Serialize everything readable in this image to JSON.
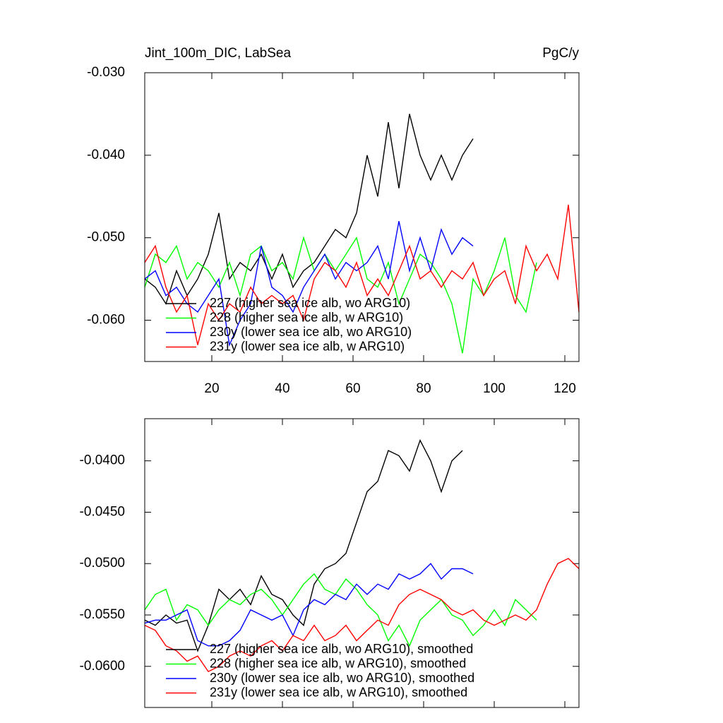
{
  "chart_data": [
    {
      "type": "line",
      "title": "Jint_100m_DIC, LabSea",
      "units": "PgC/y",
      "x": [
        1,
        4,
        7,
        10,
        13,
        16,
        19,
        22,
        25,
        28,
        31,
        34,
        37,
        40,
        43,
        46,
        49,
        52,
        55,
        58,
        61,
        64,
        67,
        70,
        73,
        76,
        79,
        82,
        85,
        88,
        91,
        94,
        97,
        100,
        103,
        106,
        109,
        112,
        115,
        118,
        121,
        124
      ],
      "series": [
        {
          "name": "227 (higher sea ice alb, wo ARG10)",
          "color": "#000000",
          "values": [
            -0.055,
            -0.056,
            -0.058,
            -0.054,
            -0.057,
            -0.055,
            -0.052,
            -0.047,
            -0.055,
            -0.053,
            -0.054,
            -0.052,
            -0.055,
            -0.052,
            -0.056,
            -0.054,
            -0.053,
            -0.051,
            -0.049,
            -0.05,
            -0.047,
            -0.04,
            -0.045,
            -0.036,
            -0.044,
            -0.035,
            -0.04,
            -0.043,
            -0.04,
            -0.043,
            -0.04,
            -0.038,
            null,
            null,
            null,
            null,
            null,
            null,
            null,
            null,
            null,
            null
          ]
        },
        {
          "name": "228 (higher sea ice alb, w ARG10)",
          "color": "#00ff00",
          "values": [
            -0.056,
            -0.052,
            -0.053,
            -0.051,
            -0.055,
            -0.053,
            -0.054,
            -0.056,
            -0.053,
            -0.057,
            -0.052,
            -0.051,
            -0.054,
            -0.053,
            -0.055,
            -0.05,
            -0.054,
            -0.052,
            -0.054,
            -0.052,
            -0.05,
            -0.055,
            -0.056,
            -0.053,
            -0.058,
            -0.055,
            -0.052,
            -0.053,
            -0.055,
            -0.058,
            -0.064,
            -0.055,
            -0.057,
            -0.054,
            -0.05,
            -0.057,
            -0.059,
            -0.053,
            null,
            null,
            null,
            null
          ]
        },
        {
          "name": "230y (lower sea ice alb, wo ARG10)",
          "color": "#0000ff",
          "values": [
            -0.055,
            -0.054,
            -0.057,
            -0.056,
            -0.058,
            -0.059,
            -0.057,
            -0.055,
            -0.063,
            -0.06,
            -0.058,
            -0.051,
            -0.056,
            -0.057,
            -0.059,
            -0.056,
            -0.054,
            -0.052,
            -0.055,
            -0.053,
            -0.054,
            -0.053,
            -0.051,
            -0.055,
            -0.048,
            -0.054,
            -0.05,
            -0.054,
            -0.049,
            -0.052,
            -0.05,
            -0.051,
            null,
            null,
            null,
            null,
            null,
            null,
            null,
            null,
            null,
            null
          ]
        },
        {
          "name": "231y (lower sea ice alb, w ARG10)",
          "color": "#ff0000",
          "values": [
            -0.053,
            -0.051,
            -0.056,
            -0.059,
            -0.057,
            -0.063,
            -0.058,
            -0.06,
            -0.058,
            -0.059,
            -0.056,
            -0.058,
            -0.057,
            -0.058,
            -0.057,
            -0.06,
            -0.055,
            -0.053,
            -0.054,
            -0.056,
            -0.053,
            -0.057,
            -0.055,
            -0.057,
            -0.054,
            -0.051,
            -0.055,
            -0.054,
            -0.056,
            -0.054,
            -0.055,
            -0.053,
            -0.057,
            -0.055,
            -0.054,
            -0.058,
            -0.051,
            -0.054,
            -0.052,
            -0.055,
            -0.046,
            -0.059
          ]
        }
      ],
      "xlim": [
        1,
        124
      ],
      "xticks": [
        20,
        40,
        60,
        80,
        100,
        120
      ],
      "ylim": [
        -0.065,
        -0.03
      ],
      "yticks": [
        {
          "value": -0.06,
          "label": "-0.060"
        },
        {
          "value": -0.05,
          "label": "-0.050"
        },
        {
          "value": -0.04,
          "label": "-0.040"
        },
        {
          "value": -0.03,
          "label": "-0.030"
        }
      ],
      "legend": "lower left"
    },
    {
      "type": "line",
      "x": [
        1,
        4,
        7,
        10,
        13,
        16,
        19,
        22,
        25,
        28,
        31,
        34,
        37,
        40,
        43,
        46,
        49,
        52,
        55,
        58,
        61,
        64,
        67,
        70,
        73,
        76,
        79,
        82,
        85,
        88,
        91,
        94,
        97,
        100,
        103,
        106,
        109,
        112,
        115,
        118,
        121,
        124
      ],
      "series": [
        {
          "name": "227 (higher sea ice alb, wo ARG10), smoothed",
          "color": "#000000",
          "values": [
            -0.0555,
            -0.056,
            -0.055,
            -0.0558,
            -0.0555,
            -0.0585,
            -0.056,
            -0.0525,
            -0.0535,
            -0.0525,
            -0.054,
            -0.0512,
            -0.053,
            -0.0535,
            -0.055,
            -0.056,
            -0.052,
            -0.0505,
            -0.05,
            -0.049,
            -0.046,
            -0.043,
            -0.042,
            -0.039,
            -0.0395,
            -0.041,
            -0.038,
            -0.04,
            -0.043,
            -0.04,
            -0.039,
            null,
            null,
            null,
            null,
            null,
            null,
            null,
            null,
            null,
            null,
            null
          ]
        },
        {
          "name": "228 (higher sea ice alb, w ARG10), smoothed",
          "color": "#00ff00",
          "values": [
            -0.0545,
            -0.053,
            -0.0525,
            -0.0555,
            -0.054,
            -0.0545,
            -0.056,
            -0.0545,
            -0.0535,
            -0.054,
            -0.053,
            -0.0525,
            -0.0535,
            -0.055,
            -0.0535,
            -0.052,
            -0.051,
            -0.0525,
            -0.053,
            -0.0515,
            -0.0525,
            -0.054,
            -0.055,
            -0.0575,
            -0.056,
            -0.058,
            -0.0555,
            -0.0545,
            -0.0535,
            -0.055,
            -0.0555,
            -0.057,
            -0.056,
            -0.0545,
            -0.056,
            -0.0535,
            -0.0545,
            -0.0555,
            null,
            null,
            null,
            null
          ]
        },
        {
          "name": "230y (lower sea ice alb, wo ARG10), smoothed",
          "color": "#0000ff",
          "values": [
            -0.0558,
            -0.0555,
            -0.0555,
            -0.055,
            -0.0545,
            -0.0575,
            -0.058,
            -0.058,
            -0.0575,
            -0.0565,
            -0.0545,
            -0.055,
            -0.0555,
            -0.055,
            -0.057,
            -0.0545,
            -0.0535,
            -0.054,
            -0.053,
            -0.0535,
            -0.052,
            -0.053,
            -0.052,
            -0.0525,
            -0.051,
            -0.0515,
            -0.051,
            -0.05,
            -0.0515,
            -0.0505,
            -0.0505,
            -0.051,
            null,
            null,
            null,
            null,
            null,
            null,
            null,
            null,
            null,
            null
          ]
        },
        {
          "name": "231y (lower sea ice alb, w ARG10), smoothed",
          "color": "#ff0000",
          "values": [
            -0.056,
            -0.0565,
            -0.058,
            -0.0585,
            -0.0595,
            -0.059,
            -0.0605,
            -0.06,
            -0.059,
            -0.0585,
            -0.059,
            -0.058,
            -0.0575,
            -0.0585,
            -0.057,
            -0.0575,
            -0.056,
            -0.0575,
            -0.057,
            -0.056,
            -0.0575,
            -0.0565,
            -0.0555,
            -0.056,
            -0.054,
            -0.053,
            -0.0525,
            -0.053,
            -0.0535,
            -0.0545,
            -0.055,
            -0.0545,
            -0.0555,
            -0.056,
            -0.0555,
            -0.055,
            -0.0555,
            -0.0545,
            -0.052,
            -0.05,
            -0.0495,
            -0.0505
          ]
        }
      ],
      "xlim": [
        1,
        124
      ],
      "xticks": [
        20,
        40,
        60,
        80,
        100,
        120
      ],
      "ylim": [
        -0.064,
        -0.0359
      ],
      "yticks": [
        {
          "value": -0.06,
          "label": "-0.0600"
        },
        {
          "value": -0.055,
          "label": "-0.0550"
        },
        {
          "value": -0.05,
          "label": "-0.0500"
        },
        {
          "value": -0.045,
          "label": "-0.0450"
        },
        {
          "value": -0.04,
          "label": "-0.0400"
        }
      ],
      "legend": "lower left"
    }
  ]
}
